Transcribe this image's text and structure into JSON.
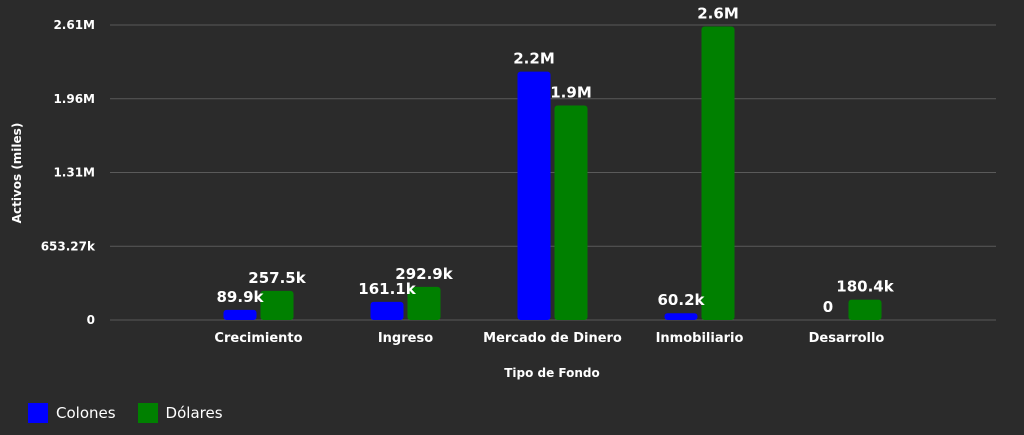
{
  "chart_data": {
    "type": "bar",
    "categories": [
      "Crecimiento",
      "Ingreso",
      "Mercado de Dinero",
      "Inmobiliario",
      "Desarrollo"
    ],
    "series": [
      {
        "name": "Colones",
        "color": "#0000ff",
        "values": [
          89900,
          161100,
          2200000,
          60200,
          0
        ],
        "labels": [
          "89.9k",
          "161.1k",
          "2.2M",
          "60.2k",
          "0"
        ]
      },
      {
        "name": "Dólares",
        "color": "#008000",
        "values": [
          257500,
          292900,
          1900000,
          2600000,
          180400
        ],
        "labels": [
          "257.5k",
          "292.9k",
          "1.9M",
          "2.6M",
          "180.4k"
        ]
      }
    ],
    "yticks": [
      {
        "value": 0,
        "label": "0"
      },
      {
        "value": 653270,
        "label": "653.27k"
      },
      {
        "value": 1306540,
        "label": "1.31M"
      },
      {
        "value": 1959810,
        "label": "1.96M"
      },
      {
        "value": 2613080,
        "label": "2.61M"
      }
    ],
    "ylim": [
      0,
      2613080
    ],
    "xlabel": "Tipo de Fondo",
    "ylabel": "Activos (miles)",
    "grid": true,
    "legend_position": "bottom-left"
  }
}
